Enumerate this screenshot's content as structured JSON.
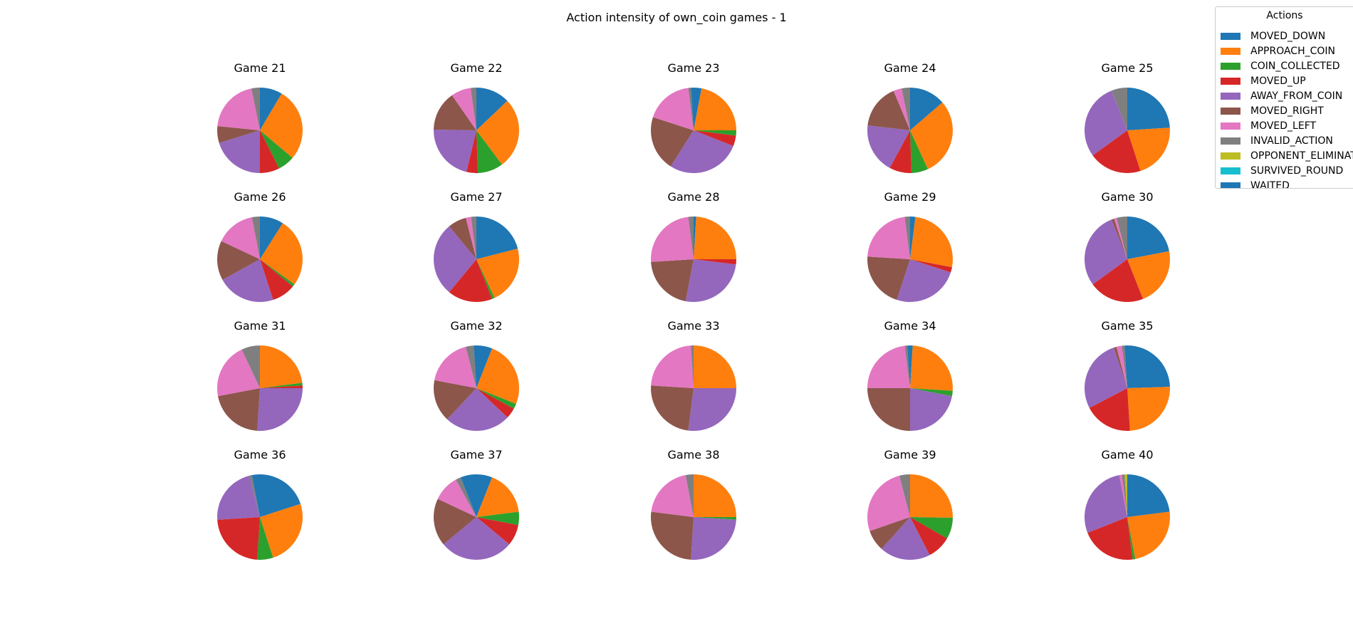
{
  "chart_data": {
    "type": "pie",
    "title": "Action intensity of own_coin games - 1",
    "legend": {
      "title": "Actions",
      "placement": "top-right",
      "entries": [
        {
          "name": "MOVED_DOWN",
          "color": "#1f77b4"
        },
        {
          "name": "APPROACH_COIN",
          "color": "#ff7f0e"
        },
        {
          "name": "COIN_COLLECTED",
          "color": "#2ca02c"
        },
        {
          "name": "MOVED_UP",
          "color": "#d62728"
        },
        {
          "name": "AWAY_FROM_COIN",
          "color": "#9467bd"
        },
        {
          "name": "MOVED_RIGHT",
          "color": "#8c564b"
        },
        {
          "name": "MOVED_LEFT",
          "color": "#e377c2"
        },
        {
          "name": "INVALID_ACTION",
          "color": "#7f7f7f"
        },
        {
          "name": "OPPONENT_ELIMINATED",
          "color": "#bcbd22"
        },
        {
          "name": "SURVIVED_ROUND",
          "color": "#17becf"
        },
        {
          "name": "WAITED",
          "color": "#1f77b4"
        }
      ]
    },
    "start_angle_deg": 90,
    "direction": "clockwise",
    "categories": [
      "MOVED_DOWN",
      "APPROACH_COIN",
      "COIN_COLLECTED",
      "MOVED_UP",
      "AWAY_FROM_COIN",
      "MOVED_RIGHT",
      "MOVED_LEFT",
      "INVALID_ACTION",
      "OPPONENT_ELIMINATED",
      "SURVIVED_ROUND",
      "WAITED"
    ],
    "charts": [
      {
        "title": "Game 21",
        "values": [
          8,
          26,
          6,
          7,
          19,
          6,
          19,
          3,
          0,
          0,
          0
        ]
      },
      {
        "title": "Game 22",
        "values": [
          12,
          25,
          9,
          4,
          20,
          14,
          7,
          2,
          0,
          0,
          0
        ]
      },
      {
        "title": "Game 23",
        "values": [
          3,
          22,
          2,
          4,
          28,
          21,
          18,
          1,
          0,
          0,
          1
        ]
      },
      {
        "title": "Game 24",
        "values": [
          13,
          28,
          6,
          8,
          18,
          16,
          3,
          3,
          0,
          0,
          0
        ]
      },
      {
        "title": "Game 25",
        "values": [
          24,
          21,
          0,
          20,
          29,
          0,
          0,
          6,
          0,
          0,
          0
        ]
      },
      {
        "title": "Game 26",
        "values": [
          9,
          26,
          1,
          9,
          22,
          15,
          15,
          3,
          0,
          0,
          0
        ]
      },
      {
        "title": "Game 27",
        "values": [
          21,
          22,
          1,
          17,
          28,
          7,
          2,
          2,
          0,
          0,
          0
        ]
      },
      {
        "title": "Game 28",
        "values": [
          1,
          24,
          0,
          2,
          26,
          21,
          24,
          2,
          0,
          0,
          0
        ]
      },
      {
        "title": "Game 29",
        "values": [
          2,
          26,
          0,
          2,
          25,
          21,
          22,
          2,
          0,
          0,
          0
        ]
      },
      {
        "title": "Game 30",
        "values": [
          22,
          22,
          0,
          21,
          29,
          1,
          1,
          4,
          0,
          0,
          0
        ]
      },
      {
        "title": "Game 31",
        "values": [
          0,
          23,
          1,
          1,
          26,
          21,
          21,
          7,
          0,
          0,
          0
        ]
      },
      {
        "title": "Game 32",
        "values": [
          6,
          25,
          2,
          4,
          25,
          16,
          18,
          3,
          0,
          0,
          1
        ]
      },
      {
        "title": "Game 33",
        "values": [
          0,
          25,
          0,
          0,
          27,
          24,
          23,
          1,
          0,
          0,
          0
        ]
      },
      {
        "title": "Game 34",
        "values": [
          1,
          25,
          2,
          0,
          22,
          25,
          23,
          1,
          0,
          0,
          1
        ]
      },
      {
        "title": "Game 35",
        "values": [
          24,
          24,
          0,
          18,
          27,
          1,
          2,
          1,
          0,
          0,
          1
        ]
      },
      {
        "title": "Game 36",
        "values": [
          20,
          25,
          6,
          23,
          22,
          0,
          0,
          1,
          0,
          0,
          3
        ]
      },
      {
        "title": "Game 37",
        "values": [
          6,
          17,
          5,
          8,
          28,
          18,
          10,
          2,
          0,
          0,
          6
        ]
      },
      {
        "title": "Game 38",
        "values": [
          0,
          25,
          1,
          0,
          25,
          26,
          20,
          3,
          0,
          0,
          0
        ]
      },
      {
        "title": "Game 39",
        "values": [
          0,
          25,
          8,
          9,
          19,
          8,
          26,
          4,
          0,
          0,
          0
        ]
      },
      {
        "title": "Game 40",
        "values": [
          23,
          24,
          1,
          21,
          28,
          0,
          1,
          1,
          1,
          0,
          0
        ]
      }
    ]
  }
}
